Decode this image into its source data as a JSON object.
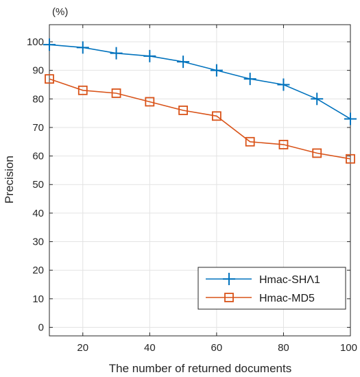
{
  "chart_data": {
    "type": "line",
    "title": "",
    "xlabel": "The number of returned documents",
    "ylabel": "Precision",
    "y_unit_label": "(%)",
    "x": [
      10,
      20,
      30,
      40,
      50,
      60,
      70,
      80,
      90,
      100
    ],
    "xlim": [
      10,
      100
    ],
    "ylim": [
      -3,
      106
    ],
    "xticks": [
      20,
      40,
      60,
      80,
      100
    ],
    "yticks": [
      0,
      10,
      20,
      30,
      40,
      50,
      60,
      70,
      80,
      90,
      100
    ],
    "grid": true,
    "legend_position": "bottom-right",
    "series": [
      {
        "name": "Hmac-SHΛ1",
        "marker": "plus",
        "color": "#0072bd",
        "values": [
          99,
          98,
          96,
          95,
          93,
          90,
          87,
          85,
          80,
          73
        ]
      },
      {
        "name": "Hmac-MD5",
        "marker": "square",
        "color": "#d95319",
        "values": [
          87,
          83,
          82,
          79,
          76,
          74,
          65,
          64,
          61,
          59
        ]
      }
    ]
  }
}
